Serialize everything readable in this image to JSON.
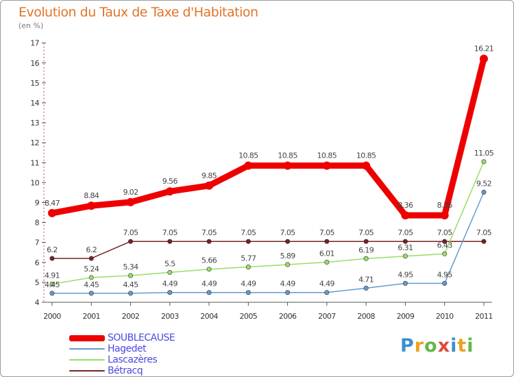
{
  "header": {
    "title": "Evolution du Taux de Taxe d'Habitation",
    "subtitle": "(en %)"
  },
  "logo": {
    "text": "Proxiti",
    "letters": [
      {
        "ch": "P",
        "color": "#3a8fd0"
      },
      {
        "ch": "r",
        "color": "#f0a020"
      },
      {
        "ch": "o",
        "color": "#62b84a"
      },
      {
        "ch": "x",
        "color": "#e04a3a"
      },
      {
        "ch": "i",
        "color": "#3a8fd0"
      },
      {
        "ch": "t",
        "color": "#f0a020"
      },
      {
        "ch": "i",
        "color": "#62b84a"
      }
    ]
  },
  "chart_data": {
    "type": "line",
    "title": "Evolution du Taux de Taxe d'Habitation",
    "ylabel": "(en %)",
    "xlabel": "",
    "categories": [
      "2000",
      "2001",
      "2002",
      "2003",
      "2004",
      "2005",
      "2006",
      "2007",
      "2008",
      "2009",
      "2010",
      "2011"
    ],
    "ylim": [
      4,
      17
    ],
    "yticks": [
      4,
      5,
      6,
      7,
      8,
      9,
      10,
      11,
      12,
      13,
      14,
      15,
      16,
      17
    ],
    "grid": false,
    "legend_position": "bottom-left",
    "series": [
      {
        "name": "SOUBLECAUSE",
        "color": "#ee0000",
        "labelColor": "#4a4ae0",
        "values": [
          8.47,
          8.84,
          9.02,
          9.56,
          9.85,
          10.85,
          10.85,
          10.85,
          10.85,
          8.36,
          8.36,
          16.21
        ],
        "labels": [
          "8.47",
          "8.84",
          "9.02",
          "9.56",
          "9.85",
          "10.85",
          "10.85",
          "10.85",
          "10.85",
          "8.36",
          "8.36",
          "16.21"
        ]
      },
      {
        "name": "Hagedet",
        "color": "#6699cc",
        "labelColor": "#4a4ae0",
        "values": [
          4.45,
          4.45,
          4.45,
          4.49,
          4.49,
          4.49,
          4.49,
          4.49,
          4.71,
          4.95,
          4.95,
          9.52
        ],
        "labels": [
          "4.45",
          "4.45",
          "4.45",
          "4.49",
          "4.49",
          "4.49",
          "4.49",
          "4.49",
          "4.71",
          "4.95",
          "4.95",
          "9.52"
        ]
      },
      {
        "name": "Lascazères",
        "color": "#99dd66",
        "labelColor": "#4a4ae0",
        "values": [
          4.91,
          5.24,
          5.34,
          5.5,
          5.66,
          5.77,
          5.89,
          6.01,
          6.19,
          6.31,
          6.43,
          11.05
        ],
        "labels": [
          "4.91",
          "5.24",
          "5.34",
          "5.5",
          "5.66",
          "5.77",
          "5.89",
          "6.01",
          "6.19",
          "6.31",
          "6.43",
          "11.05"
        ]
      },
      {
        "name": "Bétracq",
        "color": "#772222",
        "labelColor": "#4a4ae0",
        "values": [
          6.2,
          6.2,
          7.05,
          7.05,
          7.05,
          7.05,
          7.05,
          7.05,
          7.05,
          7.05,
          7.05,
          7.05
        ],
        "labels": [
          "6.2",
          "6.2",
          "7.05",
          "7.05",
          "7.05",
          "7.05",
          "7.05",
          "7.05",
          "7.05",
          "7.05",
          "7.05",
          "7.05"
        ]
      }
    ]
  }
}
